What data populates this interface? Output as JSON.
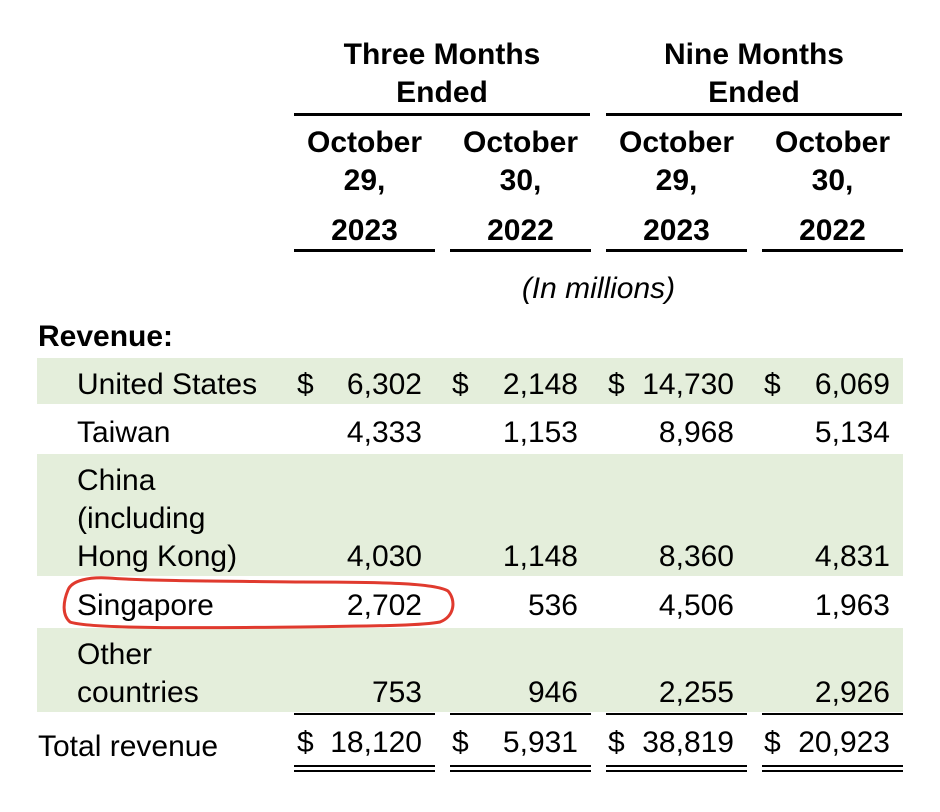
{
  "header": {
    "group1": {
      "line1": "Three Months",
      "line2": "Ended"
    },
    "group2": {
      "line1": "Nine Months",
      "line2": "Ended"
    },
    "columns": [
      {
        "month": "October",
        "day": "29,",
        "year": "2023"
      },
      {
        "month": "October",
        "day": "30,",
        "year": "2022"
      },
      {
        "month": "October",
        "day": "29,",
        "year": "2023"
      },
      {
        "month": "October",
        "day": "30,",
        "year": "2022"
      }
    ],
    "unit": "(In millions)"
  },
  "section_label": "Revenue:",
  "currency_symbol": "$",
  "rows": [
    {
      "label_lines": [
        "United States"
      ],
      "values": [
        "6,302",
        "2,148",
        "14,730",
        "6,069"
      ]
    },
    {
      "label_lines": [
        "Taiwan"
      ],
      "values": [
        "4,333",
        "1,153",
        "8,968",
        "5,134"
      ]
    },
    {
      "label_lines": [
        "China",
        "(including",
        "Hong Kong)"
      ],
      "values": [
        "4,030",
        "1,148",
        "8,360",
        "4,831"
      ]
    },
    {
      "label_lines": [
        "Singapore"
      ],
      "values": [
        "2,702",
        "536",
        "4,506",
        "1,963"
      ]
    },
    {
      "label_lines": [
        "Other",
        "countries"
      ],
      "values": [
        "753",
        "946",
        "2,255",
        "2,926"
      ]
    }
  ],
  "total": {
    "label": "Total revenue",
    "values": [
      "18,120",
      "5,931",
      "38,819",
      "20,923"
    ]
  },
  "annotation": {
    "color": "#e03a2e",
    "target": "Singapore Q3 2023 revenue"
  }
}
